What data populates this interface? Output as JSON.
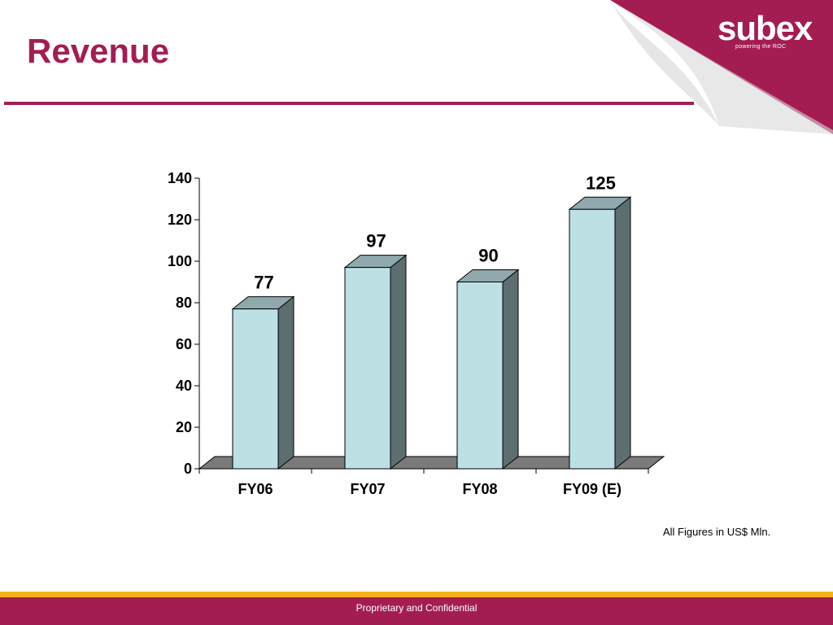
{
  "slide": {
    "title": "Revenue",
    "logo_text": "subex",
    "logo_tagline": "powering the ROC",
    "units_note": "All Figures in US$ Mln.",
    "footer_text": "Proprietary and Confidential"
  },
  "colors": {
    "brand": "#a41d52",
    "footer_accent": "#f5b21b",
    "bar_front": "#bde0e5",
    "bar_side": "#5c6e72",
    "bar_top": "#8fa9ad",
    "floor": "#7a7a7a"
  },
  "chart_data": {
    "type": "bar",
    "title": "",
    "xlabel": "",
    "ylabel": "",
    "categories": [
      "FY06",
      "FY07",
      "FY08",
      "FY09 (E)"
    ],
    "values": [
      77,
      97,
      90,
      125
    ],
    "data_labels": [
      "77",
      "97",
      "90",
      "125"
    ],
    "ylim": [
      0,
      140
    ],
    "yticks": [
      0,
      20,
      40,
      60,
      80,
      100,
      120,
      140
    ],
    "grid": false,
    "legend": "none",
    "style": "3d"
  }
}
